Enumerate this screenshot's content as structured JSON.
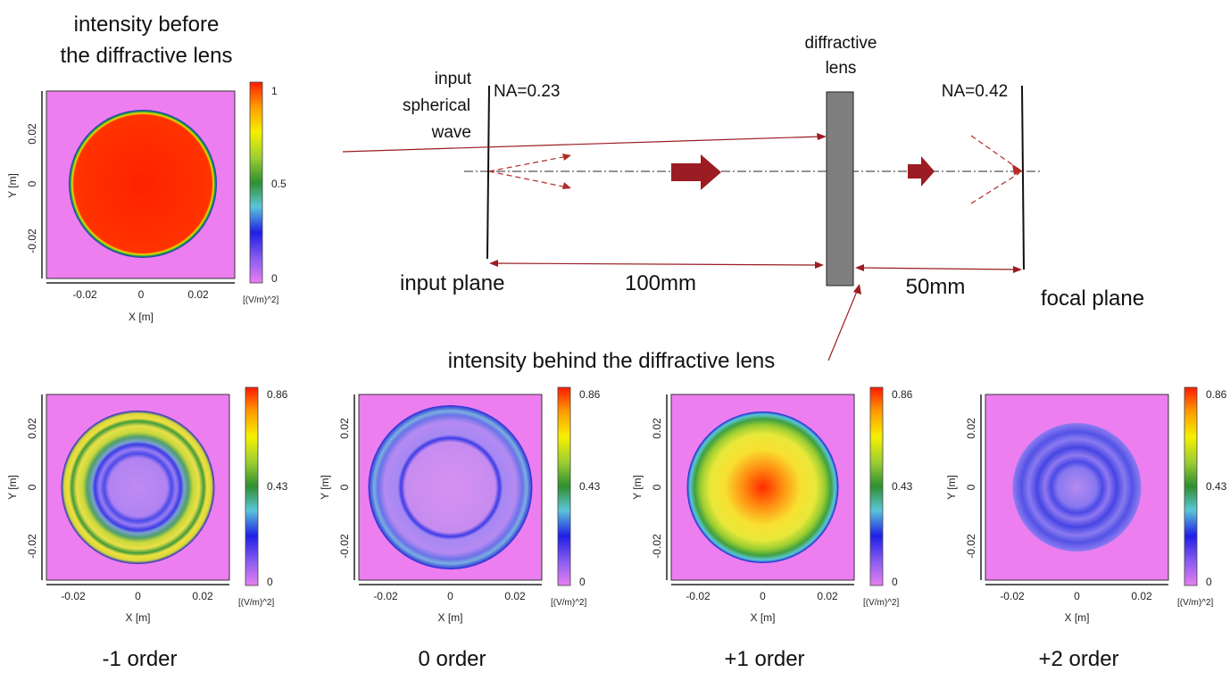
{
  "top_plot": {
    "title_line1": "intensity before",
    "title_line2": "the diffractive lens",
    "y_ticks": [
      "0.02",
      "0",
      "-0.02"
    ],
    "x_ticks": [
      "-0.02",
      "0",
      "0.02"
    ],
    "xlabel": "X [m]",
    "ylabel": "Y [m]",
    "colorbar_ticks": [
      "1",
      "0.5",
      "0"
    ],
    "unit": "[(V/m)^2]"
  },
  "setup": {
    "input_label_1": "input",
    "input_label_2": "spherical",
    "input_label_3": "wave",
    "na_input": "NA=0.23",
    "lens_label_1": "diffractive",
    "lens_label_2": "lens",
    "na_output": "NA=0.42",
    "input_plane": "input plane",
    "dist_1": "100mm",
    "dist_2": "50mm",
    "focal_plane": "focal plane",
    "behind_label": "intensity behind the diffractive lens"
  },
  "orders": [
    {
      "label": "-1 order",
      "y_ticks": [
        "0.02",
        "0",
        "-0.02"
      ],
      "x_ticks": [
        "-0.02",
        "0",
        "0.02"
      ],
      "xlabel": "X [m]",
      "ylabel": "Y [m]",
      "colorbar_ticks": [
        "0.86",
        "0.43",
        "0"
      ],
      "unit": "[(V/m)^2]"
    },
    {
      "label": "0 order",
      "y_ticks": [
        "0.02",
        "0",
        "-0.02"
      ],
      "x_ticks": [
        "-0.02",
        "0",
        "0.02"
      ],
      "xlabel": "X [m]",
      "ylabel": "Y [m]",
      "colorbar_ticks": [
        "0.86",
        "0.43",
        "0"
      ],
      "unit": "[(V/m)^2]"
    },
    {
      "label": "+1 order",
      "y_ticks": [
        "0.02",
        "0",
        "-0.02"
      ],
      "x_ticks": [
        "-0.02",
        "0",
        "0.02"
      ],
      "xlabel": "X [m]",
      "ylabel": "Y [m]",
      "colorbar_ticks": [
        "0.86",
        "0.43",
        "0"
      ],
      "unit": "[(V/m)^2]"
    },
    {
      "label": "+2 order",
      "y_ticks": [
        "0.02",
        "0",
        "-0.02"
      ],
      "x_ticks": [
        "-0.02",
        "0",
        "0.02"
      ],
      "xlabel": "X [m]",
      "ylabel": "Y [m]",
      "colorbar_ticks": [
        "0.86",
        "0.43",
        "0"
      ],
      "unit": "[(V/m)^2]"
    }
  ],
  "colors": {
    "background_field": "#ec7ef0",
    "arrow": "#9b1c22",
    "lens": "#7f7f7f"
  }
}
